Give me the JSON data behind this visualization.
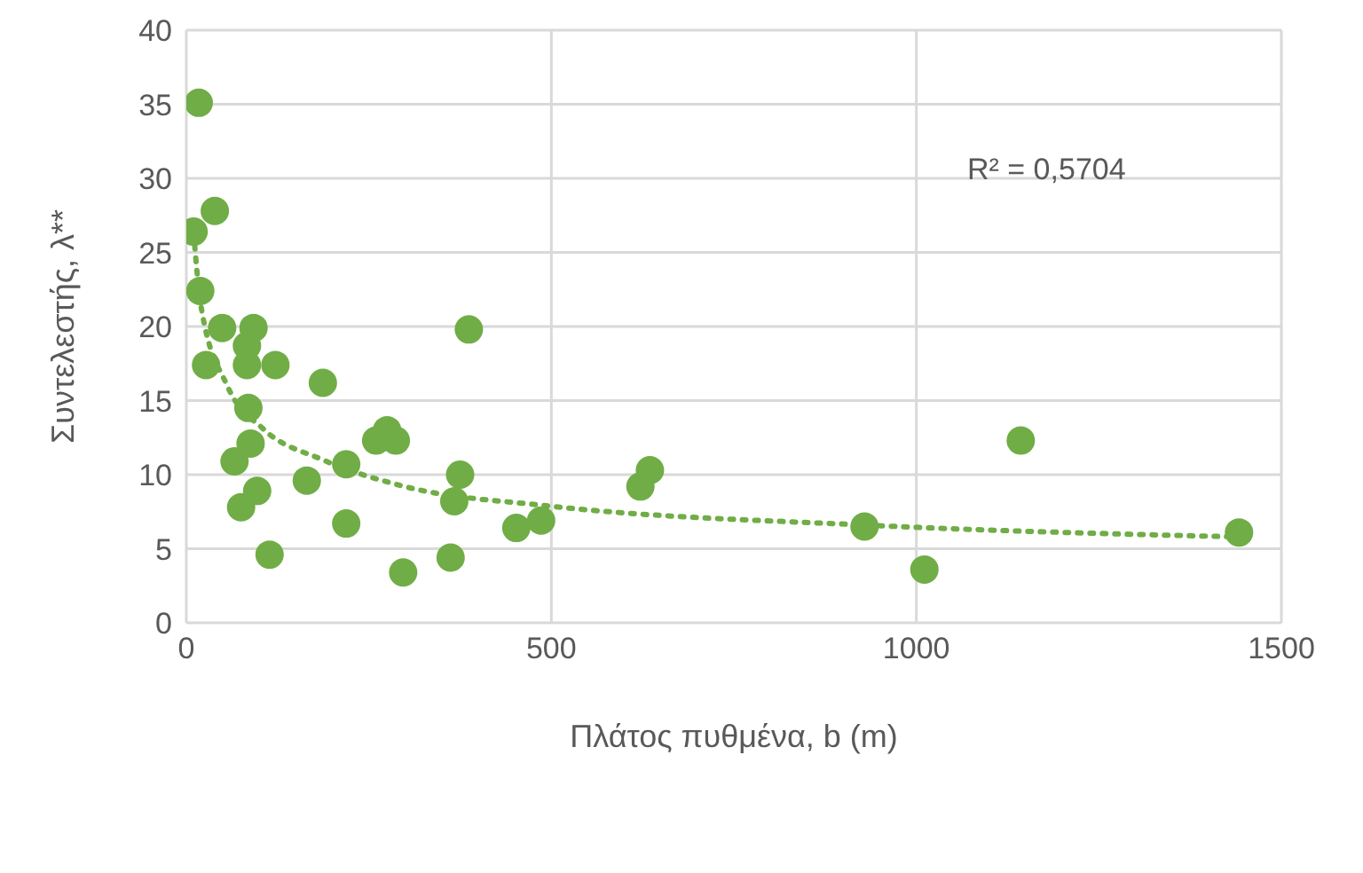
{
  "chart_data": {
    "type": "scatter",
    "xlabel": "Πλάτος πυθμένα, b (m)",
    "ylabel": "Συντελεστής, λ**",
    "xlim": [
      0,
      1500
    ],
    "xticks": [
      0,
      500,
      1000,
      1500
    ],
    "ylim": [
      0,
      40
    ],
    "yticks": [
      0,
      5,
      10,
      15,
      20,
      25,
      30,
      35,
      40
    ],
    "grid": true,
    "legend": false,
    "marker": "circle",
    "annotations": [
      "R² = 0,5704"
    ],
    "series": [
      {
        "color": "#70ad47",
        "x": [
          17,
          10,
          39,
          19,
          49,
          92,
          27,
          83,
          83,
          122,
          187,
          387,
          85,
          66,
          88,
          75,
          97,
          165,
          114,
          219,
          219,
          260,
          275,
          287,
          297,
          375,
          367,
          362,
          452,
          486,
          622,
          635,
          929,
          1011,
          1143,
          1442
        ],
        "values": [
          35.1,
          26.4,
          27.8,
          22.4,
          19.9,
          19.9,
          17.4,
          18.7,
          17.4,
          17.4,
          16.2,
          19.8,
          14.5,
          10.9,
          12.1,
          7.8,
          8.9,
          9.6,
          4.6,
          10.7,
          6.7,
          12.3,
          13.0,
          12.3,
          3.4,
          10.0,
          8.2,
          4.4,
          6.4,
          6.9,
          9.2,
          10.3,
          6.5,
          3.6,
          12.3,
          6.1
        ]
      },
      {
        "type": "line",
        "line_style": "dotted",
        "marker": "none",
        "color": "#70ad47",
        "x": [
          10,
          20,
          56,
          105,
          187,
          299,
          494,
          929,
          1440
        ],
        "values": [
          26.3,
          21.4,
          16,
          13.1,
          11,
          9.2,
          7.9,
          6.6,
          5.8
        ]
      }
    ]
  }
}
